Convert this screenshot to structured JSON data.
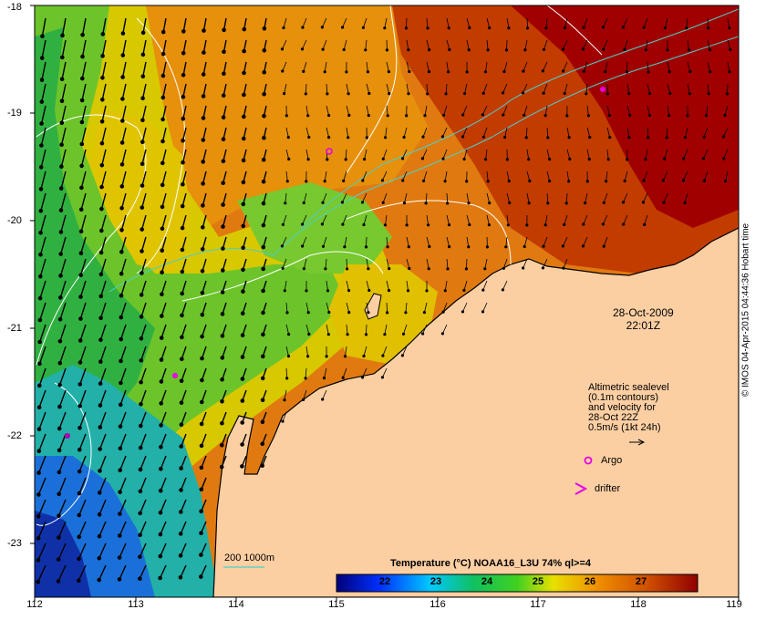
{
  "map": {
    "x_ticks": [
      "112",
      "113",
      "114",
      "115",
      "116",
      "117",
      "118",
      "119"
    ],
    "y_ticks": [
      "-18",
      "-19",
      "-20",
      "-21",
      "-22",
      "-23"
    ],
    "datetime_line1": "28-Oct-2009",
    "datetime_line2": "22:01Z",
    "legend_lines": [
      "Altimetric sealevel",
      "(0.1m contours)",
      "and velocity for",
      "28-Oct 22Z",
      "0.5m/s (1kt 24h)"
    ],
    "argo_label": "Argo",
    "drifter_label": "drifter",
    "depth_label": "200  1000m",
    "stamp": "© IMOS 04-Apr-2015 04:44:36 Hobart time",
    "colorbar": {
      "title": "Temperature (°C) NOAA16_L3U 74% ql>=4",
      "ticks": [
        "22",
        "23",
        "24",
        "25",
        "26",
        "27"
      ]
    },
    "colors": {
      "land": "#fccfa3",
      "argo_marker": "#e600e6",
      "isobath": "#4ad0c8",
      "contour": "#ffffff"
    }
  }
}
